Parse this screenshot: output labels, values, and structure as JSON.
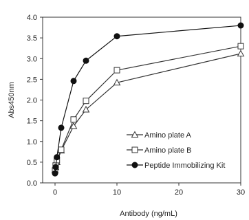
{
  "chart_data": {
    "type": "line",
    "xlabel": "Antibody (ng/mL)",
    "ylabel": "Abs450nm",
    "xlim": [
      -2,
      30
    ],
    "ylim": [
      0,
      4.0
    ],
    "x_ticks": [
      0,
      10,
      20,
      30
    ],
    "y_ticks": [
      0.0,
      0.5,
      1.0,
      1.5,
      2.0,
      2.5,
      3.0,
      3.5,
      4.0
    ],
    "grid": false,
    "legend_position": "bottom-right",
    "series": [
      {
        "name": "Amino plate A",
        "marker": "triangle-open",
        "color": "#333333",
        "x": [
          0,
          0.1,
          0.3,
          1,
          3,
          5,
          10,
          30
        ],
        "y": [
          0.3,
          0.38,
          0.5,
          0.78,
          1.37,
          1.77,
          2.42,
          3.12
        ]
      },
      {
        "name": "Amino plate B",
        "marker": "square-open",
        "color": "#333333",
        "x": [
          0,
          0.1,
          0.3,
          1,
          3,
          5,
          10,
          30
        ],
        "y": [
          0.3,
          0.42,
          0.55,
          0.8,
          1.53,
          1.98,
          2.72,
          3.3
        ]
      },
      {
        "name": "Peptide Immobilizing Kit",
        "marker": "circle-filled",
        "color": "#111111",
        "x": [
          0,
          0.1,
          0.3,
          1,
          3,
          5,
          10,
          30
        ],
        "y": [
          0.23,
          0.38,
          0.62,
          1.33,
          2.46,
          2.95,
          3.54,
          3.8
        ]
      }
    ]
  }
}
